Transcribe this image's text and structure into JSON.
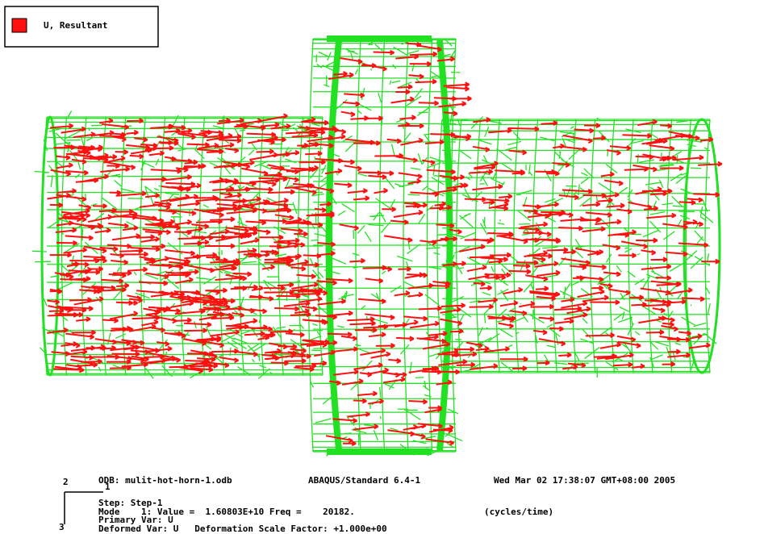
{
  "legend": {
    "label": "U, Resultant"
  },
  "info": {
    "odb": "ODB: mulit-hot-horn-1.odb",
    "solver": "ABAQUS/Standard 6.4-1",
    "date": "Wed Mar 02 17:38:07 GMT+08:00 2005",
    "step": "Step: Step-1",
    "mode": "Mode    1: Value =  1.60803E+10 Freq =    20182.",
    "units": "(cycles/time)",
    "primary": "Primary Var: U",
    "deformed": "Deformed Var: U   Deformation Scale Factor: +1.000e+00"
  },
  "triad": {
    "axis1": "1",
    "axis2": "2",
    "axis3": "3"
  }
}
